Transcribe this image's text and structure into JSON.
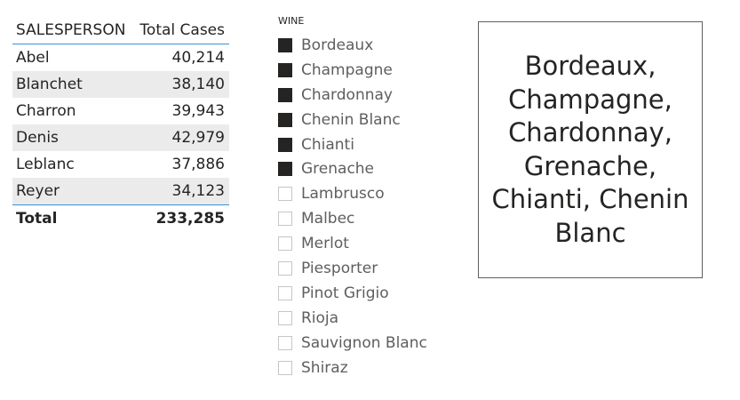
{
  "table": {
    "headers": [
      "SALESPERSON",
      "Total Cases"
    ],
    "rows": [
      {
        "name": "Abel",
        "value": "40,214"
      },
      {
        "name": "Blanchet",
        "value": "38,140"
      },
      {
        "name": "Charron",
        "value": "39,943"
      },
      {
        "name": "Denis",
        "value": "42,979"
      },
      {
        "name": "Leblanc",
        "value": "37,886"
      },
      {
        "name": "Reyer",
        "value": "34,123"
      }
    ],
    "total": {
      "label": "Total",
      "value": "233,285"
    },
    "accent_color": "#3a8fd6",
    "alt_row_color": "#ebebeb"
  },
  "slicer": {
    "title": "WINE",
    "items": [
      {
        "label": "Bordeaux",
        "checked": true
      },
      {
        "label": "Champagne",
        "checked": true
      },
      {
        "label": "Chardonnay",
        "checked": true
      },
      {
        "label": "Chenin Blanc",
        "checked": true
      },
      {
        "label": "Chianti",
        "checked": true
      },
      {
        "label": "Grenache",
        "checked": true
      },
      {
        "label": "Lambrusco",
        "checked": false
      },
      {
        "label": "Malbec",
        "checked": false
      },
      {
        "label": "Merlot",
        "checked": false
      },
      {
        "label": "Piesporter",
        "checked": false
      },
      {
        "label": "Pinot Grigio",
        "checked": false
      },
      {
        "label": "Rioja",
        "checked": false
      },
      {
        "label": "Sauvignon Blanc",
        "checked": false
      },
      {
        "label": "Shiraz",
        "checked": false
      }
    ]
  },
  "card": {
    "text": "Bordeaux, Champagne, Chardonnay, Grenache, Chianti, Chenin Blanc"
  }
}
